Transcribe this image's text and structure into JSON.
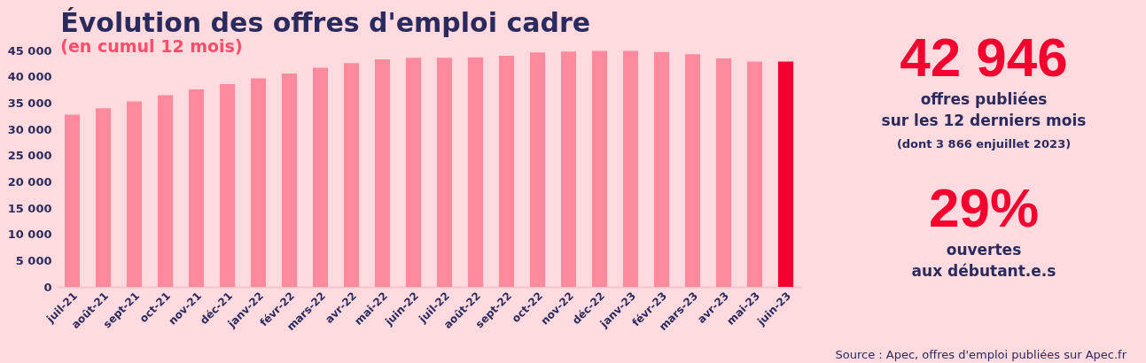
{
  "chart_data": {
    "type": "bar",
    "title": "Évolution des offres d'emploi cadre",
    "subtitle": "(en cumul 12 mois)",
    "categories": [
      "juil-21",
      "août-21",
      "sept-21",
      "oct-21",
      "nov-21",
      "déc-21",
      "janv-22",
      "févr-22",
      "mars-22",
      "avr-22",
      "mai-22",
      "juin-22",
      "juil-22",
      "août-22",
      "sept-22",
      "oct-22",
      "nov-22",
      "déc-22",
      "janv-23",
      "févr-23",
      "mars-23",
      "avr-23",
      "mai-23",
      "juin-23"
    ],
    "values": [
      32800,
      34000,
      35300,
      36500,
      37600,
      38600,
      39700,
      40600,
      41700,
      42600,
      43300,
      43600,
      43600,
      43700,
      44000,
      44600,
      44800,
      44900,
      44900,
      44700,
      44300,
      43500,
      42900,
      42900
    ],
    "colors": [
      "#ff8a9e",
      "#ff8a9e",
      "#ff8a9e",
      "#ff8a9e",
      "#ff8a9e",
      "#ff8a9e",
      "#ff8a9e",
      "#ff8a9e",
      "#ff8a9e",
      "#ff8a9e",
      "#ff8a9e",
      "#ff8a9e",
      "#ff8a9e",
      "#ff8a9e",
      "#ff8a9e",
      "#ff8a9e",
      "#ff8a9e",
      "#ff8a9e",
      "#ff8a9e",
      "#ff8a9e",
      "#ff8a9e",
      "#ff8a9e",
      "#ff8a9e",
      "#f5002f"
    ],
    "ylim": [
      0,
      45000
    ],
    "yticks": [
      0,
      {
        "value": 5000,
        "label": "5 000"
      },
      {
        "value": 10000,
        "label": "10 000"
      },
      {
        "value": 15000,
        "label": "15 000"
      },
      {
        "value": 20000,
        "label": "20 000"
      },
      {
        "value": 25000,
        "label": "25 000"
      },
      {
        "value": 30000,
        "label": "30 000"
      },
      {
        "value": 35000,
        "label": "35 000"
      },
      {
        "value": 40000,
        "label": "40 000"
      },
      {
        "value": 45000,
        "label": "45 000"
      }
    ],
    "grid": false,
    "legend": false,
    "annotations": [
      "42 946",
      "offres publiées",
      "sur les 12 derniers mois",
      "(dont 3 866 enjuillet 2023)",
      "29%",
      "ouvertes",
      "aux débutant.e.s",
      "Source : Apec, offres d'emploi publiées sur Apec.fr"
    ]
  }
}
